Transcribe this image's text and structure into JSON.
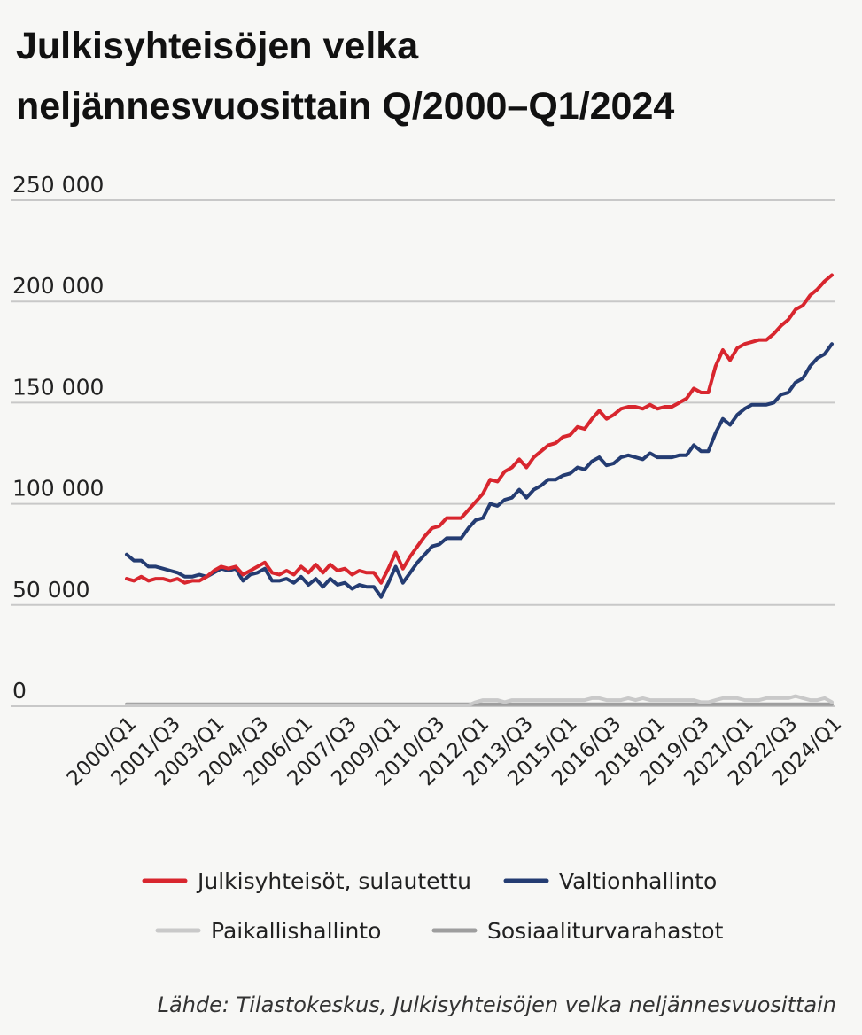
{
  "chart_data": {
    "type": "line",
    "title_lines": [
      "Julkisyhteisöjen velka",
      "neljännesvuosittain Q/2000–Q1/2024"
    ],
    "xlabel": "",
    "ylabel": "",
    "ylim": [
      0,
      250000
    ],
    "yticks": [
      0,
      50000,
      100000,
      150000,
      200000,
      250000
    ],
    "ytick_labels": [
      "0",
      "50 000",
      "100 000",
      "150 000",
      "200 000",
      "250 000"
    ],
    "grid": "horizontal",
    "legend_position": "bottom",
    "x_start": "2000/Q1",
    "x_end": "2024/Q1",
    "x_tick_labels": [
      "2000/Q1",
      "2001/Q3",
      "2003/Q1",
      "2004/Q3",
      "2006/Q1",
      "2007/Q3",
      "2009/Q1",
      "2010/Q3",
      "2012/Q1",
      "2013/Q3",
      "2015/Q1",
      "2016/Q3",
      "2018/Q1",
      "2019/Q3",
      "2021/Q1",
      "2022/Q3",
      "2024/Q1"
    ],
    "series": [
      {
        "name": "Julkisyhteisöt, sulautettu",
        "color": "#d8262e",
        "values": [
          63000,
          62000,
          64000,
          62000,
          63000,
          63000,
          62000,
          63000,
          61000,
          62000,
          62000,
          64000,
          67000,
          69000,
          68000,
          69000,
          65000,
          67000,
          69000,
          71000,
          66000,
          65000,
          67000,
          65000,
          69000,
          66000,
          70000,
          66000,
          70000,
          67000,
          68000,
          65000,
          67000,
          66000,
          66000,
          61000,
          68000,
          76000,
          68000,
          74000,
          79000,
          84000,
          88000,
          89000,
          93000,
          93000,
          93000,
          97000,
          101000,
          105000,
          112000,
          111000,
          116000,
          118000,
          122000,
          118000,
          123000,
          126000,
          129000,
          130000,
          133000,
          134000,
          138000,
          137000,
          142000,
          146000,
          142000,
          144000,
          147000,
          148000,
          148000,
          147000,
          149000,
          147000,
          148000,
          148000,
          150000,
          152000,
          157000,
          155000,
          155000,
          168000,
          176000,
          171000,
          177000,
          179000,
          180000,
          181000,
          181000,
          184000,
          188000,
          191000,
          196000,
          198000,
          203000,
          206000,
          210000,
          213000
        ]
      },
      {
        "name": "Valtionhallinto",
        "color": "#243c72",
        "values": [
          75000,
          72000,
          72000,
          69000,
          69000,
          68000,
          67000,
          66000,
          64000,
          64000,
          65000,
          64000,
          66000,
          68000,
          67000,
          68000,
          62000,
          65000,
          66000,
          68000,
          62000,
          62000,
          63000,
          61000,
          64000,
          60000,
          63000,
          59000,
          63000,
          60000,
          61000,
          58000,
          60000,
          59000,
          59000,
          54000,
          61000,
          69000,
          61000,
          66000,
          71000,
          75000,
          79000,
          80000,
          83000,
          83000,
          83000,
          88000,
          92000,
          93000,
          100000,
          99000,
          102000,
          103000,
          107000,
          103000,
          107000,
          109000,
          112000,
          112000,
          114000,
          115000,
          118000,
          117000,
          121000,
          123000,
          119000,
          120000,
          123000,
          124000,
          123000,
          122000,
          125000,
          123000,
          123000,
          123000,
          124000,
          124000,
          129000,
          126000,
          126000,
          135000,
          142000,
          139000,
          144000,
          147000,
          149000,
          149000,
          149000,
          150000,
          154000,
          155000,
          160000,
          162000,
          168000,
          172000,
          174000,
          179000
        ]
      },
      {
        "name": "Paikallishallinto",
        "color": "#c9c9c9",
        "values": [
          500,
          500,
          500,
          500,
          500,
          500,
          500,
          500,
          500,
          500,
          500,
          500,
          500,
          500,
          500,
          500,
          500,
          500,
          500,
          500,
          500,
          500,
          500,
          500,
          500,
          500,
          500,
          500,
          500,
          500,
          500,
          500,
          500,
          500,
          500,
          500,
          500,
          500,
          500,
          500,
          500,
          500,
          500,
          500,
          500,
          500,
          500,
          500,
          2000,
          3000,
          3000,
          3000,
          2000,
          3000,
          3000,
          3000,
          3000,
          3000,
          3000,
          3000,
          3000,
          3000,
          3000,
          3000,
          4000,
          4000,
          3000,
          3000,
          3000,
          4000,
          3000,
          4000,
          3000,
          3000,
          3000,
          3000,
          3000,
          3000,
          3000,
          2000,
          2000,
          3000,
          4000,
          4000,
          4000,
          3000,
          3000,
          3000,
          4000,
          4000,
          4000,
          4000,
          5000,
          4000,
          3000,
          3000,
          4000,
          2000
        ]
      },
      {
        "name": "Sosiaaliturvarahastot",
        "color": "#9e9e9e",
        "values": [
          1000,
          1000,
          1000,
          1000,
          1000,
          1000,
          1000,
          1000,
          1000,
          1000,
          1000,
          1000,
          1000,
          1000,
          1000,
          1000,
          1000,
          1000,
          1000,
          1000,
          1000,
          1000,
          1000,
          1000,
          1000,
          1000,
          1000,
          1000,
          1000,
          1000,
          1000,
          1000,
          1000,
          1000,
          1000,
          1000,
          1000,
          1000,
          1000,
          1000,
          1000,
          1000,
          1000,
          1000,
          1000,
          1000,
          1000,
          1000,
          1000,
          1000,
          1000,
          1000,
          1000,
          1000,
          1000,
          1000,
          1000,
          1000,
          1000,
          1000,
          1000,
          1000,
          1000,
          1000,
          1000,
          1000,
          1000,
          1000,
          1000,
          1000,
          1000,
          1000,
          1000,
          1000,
          1000,
          1000,
          1000,
          1000,
          1000,
          1000,
          1000,
          1000,
          1000,
          1000,
          1000,
          1000,
          1000,
          1000,
          1000,
          1000,
          1000,
          1000,
          1000,
          1000,
          1000,
          1000,
          1000,
          1000
        ]
      }
    ]
  },
  "source": "Lähde: Tilastokeskus, Julkisyhteisöjen velka neljännesvuosittain"
}
